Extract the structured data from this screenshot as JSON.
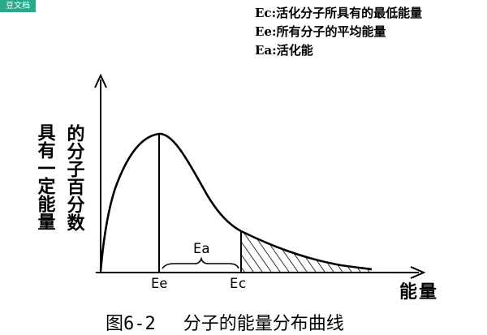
{
  "badge": "豆文档",
  "legend": [
    {
      "symbol": "Ec:",
      "text": "活化分子所具有的最低能量"
    },
    {
      "symbol": "Ee:",
      "text": "所有分子的平均能量"
    },
    {
      "symbol": "Ea:",
      "text": "活化能"
    }
  ],
  "y_axis_label": {
    "col1": "具有一定能量",
    "col2": "的分子百分数"
  },
  "x_axis_label": "能量",
  "markers": {
    "ee": "Ee",
    "ec": "Ec",
    "ea": "Ea"
  },
  "caption": {
    "figure_number": "图6-2",
    "title": "分子的能量分布曲线"
  }
}
